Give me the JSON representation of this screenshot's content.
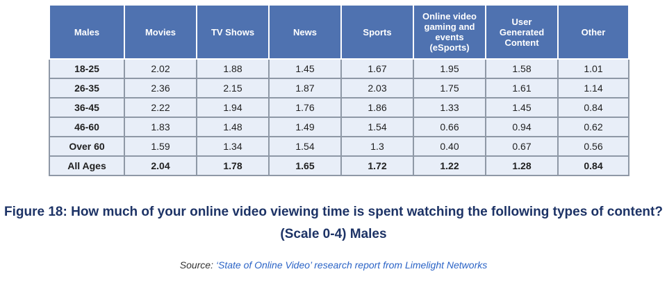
{
  "chart_data": {
    "type": "table",
    "columns": [
      "Males",
      "Movies",
      "TV Shows",
      "News",
      "Sports",
      "Online video gaming and events (eSports)",
      "User Generated Content",
      "Other"
    ],
    "rows": [
      {
        "label": "18-25",
        "values": [
          "2.02",
          "1.88",
          "1.45",
          "1.67",
          "1.95",
          "1.58",
          "1.01"
        ]
      },
      {
        "label": "26-35",
        "values": [
          "2.36",
          "2.15",
          "1.87",
          "2.03",
          "1.75",
          "1.61",
          "1.14"
        ]
      },
      {
        "label": "36-45",
        "values": [
          "2.22",
          "1.94",
          "1.76",
          "1.86",
          "1.33",
          "1.45",
          "0.84"
        ]
      },
      {
        "label": "46-60",
        "values": [
          "1.83",
          "1.48",
          "1.49",
          "1.54",
          "0.66",
          "0.94",
          "0.62"
        ]
      },
      {
        "label": "Over 60",
        "values": [
          "1.59",
          "1.34",
          "1.54",
          "1.3",
          "0.40",
          "0.67",
          "0.56"
        ]
      },
      {
        "label": "All Ages",
        "values": [
          "2.04",
          "1.78",
          "1.65",
          "1.72",
          "1.22",
          "1.28",
          "0.84"
        ]
      }
    ],
    "title_line1": "Figure 18: How much of your online video viewing time is spent watching the following types of content?",
    "title_line2": "(Scale 0-4) Males"
  },
  "source": {
    "prefix": "Source:",
    "text": "‘State of Online Video’ research report from Limelight Networks"
  },
  "colors": {
    "header_bg": "#4f72b0",
    "cell_bg": "#e8eef8",
    "title": "#1d3366",
    "source_link": "#2a63c6"
  }
}
